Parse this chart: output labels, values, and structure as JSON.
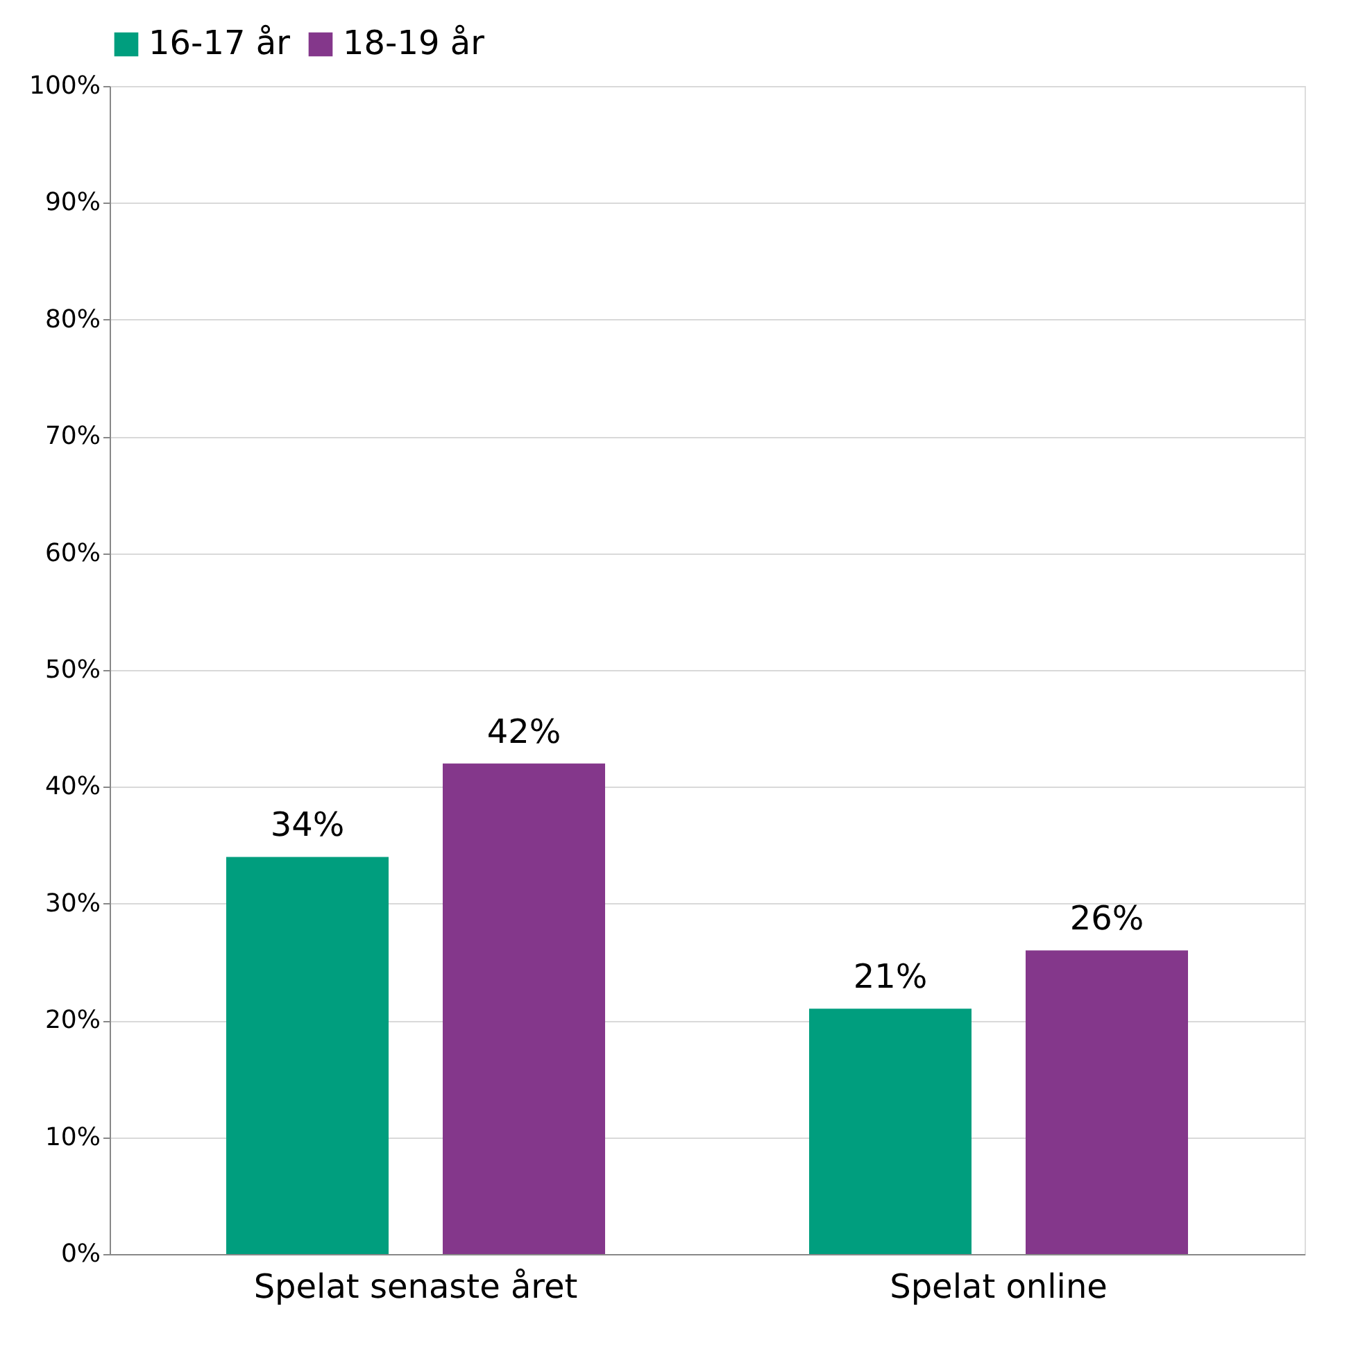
{
  "chart_data": {
    "type": "bar",
    "categories": [
      "Spelat senaste året",
      "Spelat online"
    ],
    "series": [
      {
        "name": "16-17 år",
        "color": "#009e7e",
        "values": [
          34,
          21
        ],
        "value_labels": [
          "34%",
          "21%"
        ]
      },
      {
        "name": "18-19 år",
        "color": "#84378b",
        "values": [
          42,
          26
        ],
        "value_labels": [
          "42%",
          "26%"
        ]
      }
    ],
    "ylim": [
      0,
      100
    ],
    "yticks": [
      {
        "value": 0,
        "label": "0%"
      },
      {
        "value": 10,
        "label": "10%"
      },
      {
        "value": 20,
        "label": "20%"
      },
      {
        "value": 30,
        "label": "30%"
      },
      {
        "value": 40,
        "label": "40%"
      },
      {
        "value": 50,
        "label": "50%"
      },
      {
        "value": 60,
        "label": "60%"
      },
      {
        "value": 70,
        "label": "70%"
      },
      {
        "value": 80,
        "label": "80%"
      },
      {
        "value": 90,
        "label": "90%"
      },
      {
        "value": 100,
        "label": "100%"
      }
    ],
    "grid": "y",
    "legend": "top"
  }
}
